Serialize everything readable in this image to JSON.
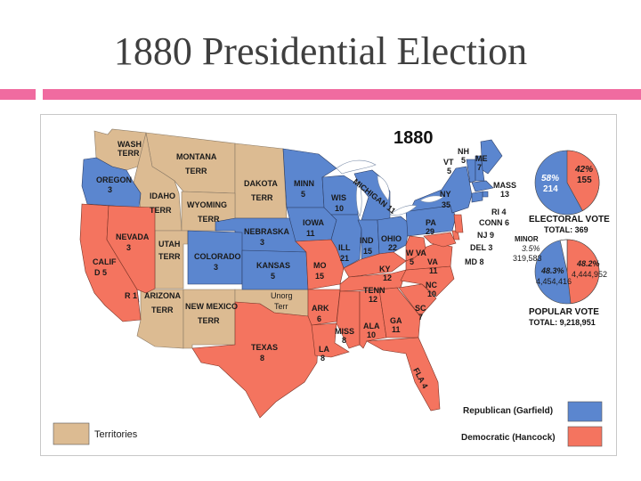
{
  "slide": {
    "title": "1880 Presidential Election"
  },
  "map": {
    "year": "1880",
    "colors": {
      "republican": "#5b86cf",
      "democratic": "#f4745f",
      "territory": "#dcbb92",
      "water": "#ffffff"
    },
    "labels": {
      "wash": "WASH",
      "wash_terr": "TERR",
      "montana": "MONTANA",
      "montana_terr": "TERR",
      "dakota": "DAKOTA",
      "dakota_terr": "TERR",
      "oregon": "OREGON",
      "oregon_ev": "3",
      "idaho": "IDAHO",
      "idaho_terr": "TERR",
      "wyoming": "WYOMING",
      "wyoming_terr": "TERR",
      "minn": "MINN",
      "minn_ev": "5",
      "wis": "WIS",
      "wis_ev": "10",
      "mich": "MICHIGAN 11",
      "iowa": "IOWA",
      "iowa_ev": "11",
      "nebraska": "NEBRASKA",
      "nebraska_ev": "3",
      "nevada": "NEVADA",
      "nevada_ev": "3",
      "utah": "UTAH",
      "utah_terr": "TERR",
      "colorado": "COLORADO",
      "colorado_ev": "3",
      "kansas": "KANSAS",
      "kansas_ev": "5",
      "calif": "CALIF",
      "calif_ev": "D 5",
      "calif_r": "R 1",
      "arizona": "ARIZONA",
      "arizona_terr": "TERR",
      "newmexico": "NEW MEXICO",
      "newmexico_terr": "TERR",
      "unorg": "Unorg",
      "unorg_terr": "Terr",
      "mo": "MO",
      "mo_ev": "15",
      "ill": "ILL",
      "ill_ev": "21",
      "ind": "IND",
      "ind_ev": "15",
      "ohio": "OHIO",
      "ohio_ev": "22",
      "pa": "PA",
      "pa_ev": "29",
      "ny": "NY",
      "ny_ev": "35",
      "vt": "VT",
      "vt_ev": "5",
      "nh": "NH",
      "nh_ev": "5",
      "me": "ME",
      "me_ev": "7",
      "mass": "MASS",
      "mass_ev": "13",
      "ri": "RI 4",
      "conn": "CONN 6",
      "nj": "NJ 9",
      "del": "DEL 3",
      "md": "MD 8",
      "wva": "W VA",
      "wva_ev": "5",
      "va": "VA",
      "va_ev": "11",
      "ky": "KY",
      "ky_ev": "12",
      "nc": "NC",
      "nc_ev": "10",
      "tenn": "TENN",
      "tenn_ev": "12",
      "sc": "SC",
      "sc_ev": "7",
      "ark": "ARK",
      "ark_ev": "6",
      "miss": "MISS",
      "miss_ev": "8",
      "ala": "ALA",
      "ala_ev": "10",
      "ga": "GA",
      "ga_ev": "11",
      "texas": "TEXAS",
      "texas_ev": "8",
      "la": "LA",
      "la_ev": "8",
      "fla": "FLA 4"
    }
  },
  "electoral": {
    "title": "ELECTORAL VOTE",
    "total": "TOTAL: 369",
    "rep_pct": "58%",
    "rep_ev": "214",
    "dem_pct": "42%",
    "dem_ev": "155",
    "rep_share": 58
  },
  "popular": {
    "title": "POPULAR VOTE",
    "total": "TOTAL: 9,218,951",
    "minor_label": "MINOR",
    "minor_pct": "3.5%",
    "minor_votes": "319,583",
    "rep_pct": "48.3%",
    "rep_votes": "4,454,416",
    "dem_pct": "48.2%",
    "dem_votes": "4,444,952",
    "rep_share": 48.3,
    "dem_share": 48.2,
    "minor_share": 3.5
  },
  "legend": {
    "republican": "Republican (Garfield)",
    "democratic": "Democratic (Hancock)",
    "territories": "Territories"
  }
}
